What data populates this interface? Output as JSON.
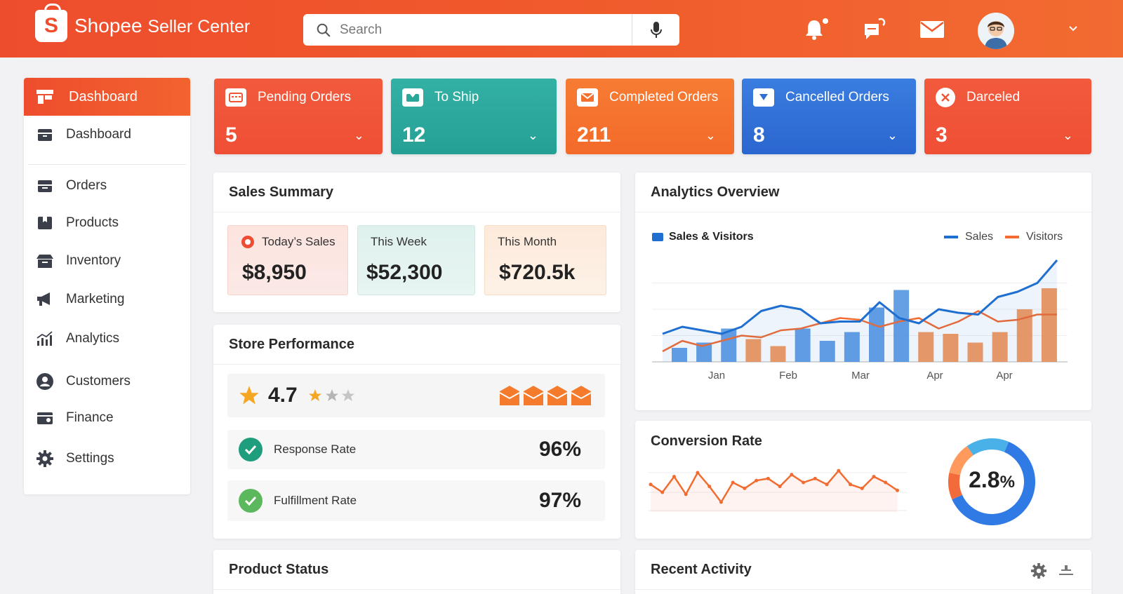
{
  "header": {
    "logo_letter": "S",
    "brand": "Shopee",
    "product": "Seller Center",
    "search_placeholder": "Search",
    "icons": [
      "search-icon",
      "microphone-icon",
      "bell-icon",
      "chat-icon",
      "mail-icon",
      "avatar",
      "chevron-down-icon"
    ]
  },
  "sidebar": {
    "active_label": "Dashboard",
    "items": [
      {
        "label": "Dashboard",
        "icon": "box-icon"
      },
      {
        "label": "Orders",
        "icon": "orders-icon"
      },
      {
        "label": "Products",
        "icon": "products-icon"
      },
      {
        "label": "Inventory",
        "icon": "inventory-icon"
      },
      {
        "label": "Marketing",
        "icon": "megaphone-icon"
      },
      {
        "label": "Analytics",
        "icon": "analytics-icon"
      },
      {
        "label": "Customers",
        "icon": "user-icon"
      },
      {
        "label": "Finance",
        "icon": "wallet-icon"
      },
      {
        "label": "Settings",
        "icon": "gear-icon"
      }
    ]
  },
  "stats": [
    {
      "label": "Pending Orders",
      "value": "5",
      "color": "#ef5533"
    },
    {
      "label": "To Ship",
      "value": "12",
      "color": "#2aa79b"
    },
    {
      "label": "Completed Orders",
      "value": "211",
      "color": "#f4712d"
    },
    {
      "label": "Cancelled Orders",
      "value": "8",
      "color": "#2f6fd6"
    },
    {
      "label": "Darceled",
      "value": "3",
      "color": "#ef5533"
    }
  ],
  "sales_summary": {
    "title": "Sales Summary",
    "boxes": [
      {
        "label": "Today’s Sales",
        "value": "$8,950"
      },
      {
        "label": "This Week",
        "value": "$52,300"
      },
      {
        "label": "This Month",
        "value": "$720.5k"
      }
    ]
  },
  "store_performance": {
    "title": "Store Performance",
    "rating": "4.7",
    "rows": [
      {
        "label": "Response Rate",
        "value": "96%"
      },
      {
        "label": "Fulfillment Rate",
        "value": "97%"
      }
    ]
  },
  "product_status": {
    "title": "Product Status"
  },
  "analytics": {
    "title": "Analytics Overview",
    "legend_title": "Sales & Visitors",
    "legend": [
      "Sales",
      "Visitors"
    ]
  },
  "conversion": {
    "title": "Conversion Rate",
    "value": "2.8",
    "unit": "%"
  },
  "recent_activity": {
    "title": "Recent Activity"
  },
  "chart_data": {
    "type": "bar",
    "x_tick_labels": [
      "Jan",
      "Feb",
      "Mar",
      "Apr",
      "Apr"
    ],
    "series": [
      {
        "name": "Sales",
        "type": "line",
        "color": "#1f6fd1",
        "values": [
          16,
          20,
          18,
          16,
          20,
          29,
          32,
          30,
          22,
          23,
          23,
          34,
          25,
          22,
          30,
          28,
          27,
          37,
          40,
          45,
          58
        ]
      },
      {
        "name": "Visitors",
        "type": "line",
        "color": "#f26b31",
        "values": [
          6,
          12,
          9,
          12,
          15,
          14,
          18,
          19,
          22,
          25,
          24,
          20,
          23,
          25,
          19,
          23,
          29,
          23,
          24,
          27,
          27
        ]
      },
      {
        "name": "bars",
        "type": "bar",
        "colors": [
          "#4a8fe0",
          "#f48a45"
        ],
        "values": [
          8,
          11,
          19,
          13,
          9,
          19,
          12,
          17,
          31,
          41,
          17,
          16,
          11,
          17,
          30,
          42
        ],
        "kinds": [
          0,
          0,
          0,
          1,
          1,
          0,
          0,
          0,
          0,
          0,
          1,
          1,
          1,
          1,
          1,
          1
        ]
      }
    ],
    "conversion_line": [
      14,
      10,
      18,
      9,
      20,
      13,
      5,
      15,
      12,
      16,
      17,
      13,
      19,
      15,
      17,
      14,
      21,
      14,
      12,
      18,
      15,
      11
    ],
    "donut": [
      {
        "value": 62,
        "color": "#2f7ae5"
      },
      {
        "value": 10,
        "color": "#f46b3b"
      },
      {
        "value": 12,
        "color": "#ff9a5c"
      },
      {
        "value": 16,
        "color": "#4ab0e8"
      }
    ]
  }
}
